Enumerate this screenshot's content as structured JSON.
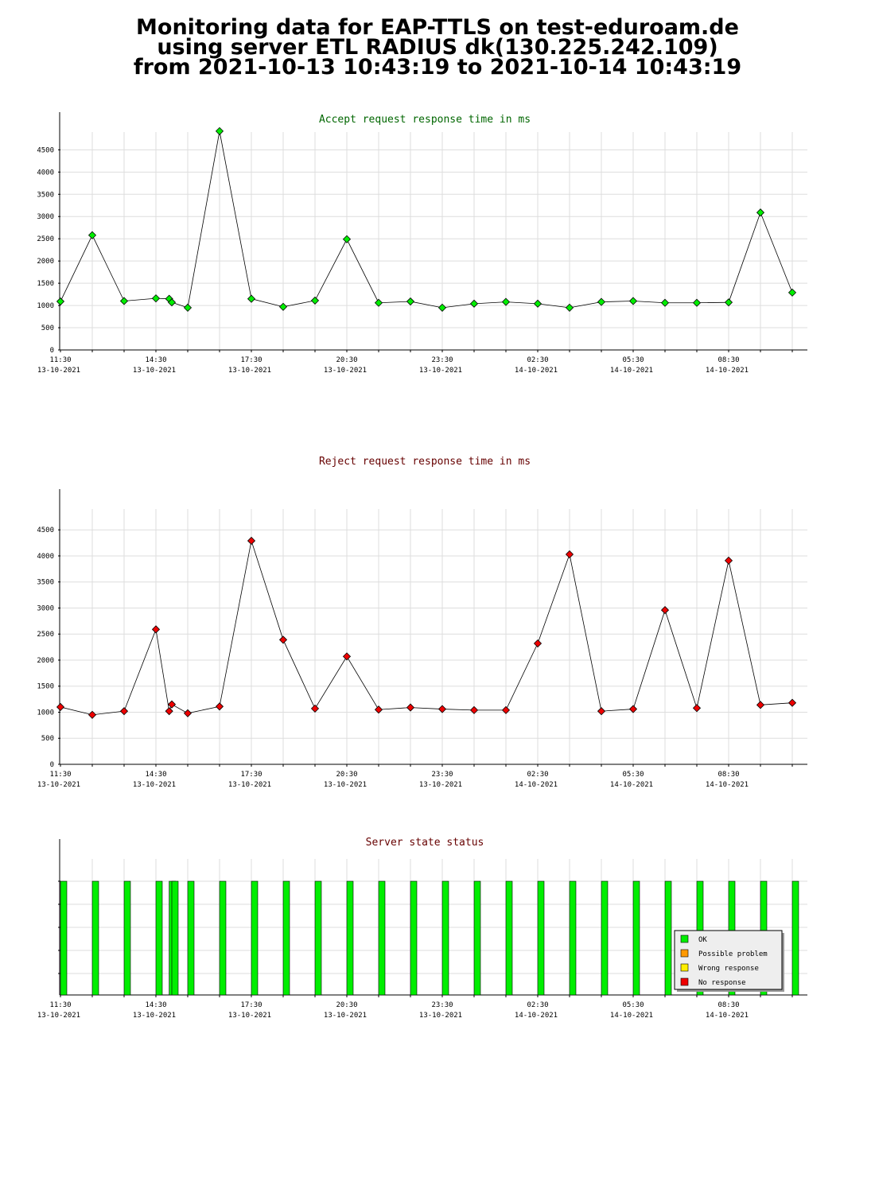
{
  "page": {
    "title_lines": [
      "Monitoring data for EAP-TTLS on test-eduroam.de",
      "using server ETL RADIUS dk(130.225.242.109)",
      "from 2021-10-13 10:43:19 to 2021-10-14 10:43:19"
    ]
  },
  "colors": {
    "accept_title": "#006600",
    "reject_title": "#660000",
    "status_title": "#660000",
    "accept_marker": "#00ee00",
    "reject_marker": "#ee0000",
    "ok": "#00ee00",
    "possible_problem": "#ff9900",
    "wrong_response": "#ffee00",
    "no_response": "#ee0000",
    "grid": "#dddddd"
  },
  "x_ticks": [
    {
      "time": "11:30",
      "date": "13-10-2021"
    },
    {
      "time": "14:30",
      "date": "13-10-2021"
    },
    {
      "time": "17:30",
      "date": "13-10-2021"
    },
    {
      "time": "20:30",
      "date": "13-10-2021"
    },
    {
      "time": "23:30",
      "date": "13-10-2021"
    },
    {
      "time": "02:30",
      "date": "14-10-2021"
    },
    {
      "time": "05:30",
      "date": "14-10-2021"
    },
    {
      "time": "08:30",
      "date": "14-10-2021"
    }
  ],
  "chart_data": [
    {
      "type": "line",
      "title": "Accept request response time in ms",
      "xlabel": "",
      "ylabel": "",
      "ylim": [
        0,
        4900
      ],
      "y_ticks": [
        0,
        500,
        1000,
        1500,
        2000,
        2500,
        3000,
        3500,
        4000,
        4500
      ],
      "grid": true,
      "series": [
        {
          "x": [
            "11:30",
            "12:30",
            "13:30",
            "14:30",
            "14:55",
            "15:00",
            "15:30",
            "16:30",
            "17:30",
            "18:30",
            "19:30",
            "20:30",
            "21:30",
            "22:30",
            "23:30",
            "00:30",
            "01:30",
            "02:30",
            "03:30",
            "04:30",
            "05:30",
            "06:30",
            "07:30",
            "08:30",
            "09:30",
            "10:30"
          ],
          "values": [
            1090,
            2580,
            1100,
            1160,
            1150,
            1070,
            950,
            4920,
            1150,
            970,
            1110,
            2490,
            1060,
            1090,
            950,
            1040,
            1080,
            1040,
            950,
            1080,
            1100,
            1060,
            1060,
            1070,
            3090,
            1290
          ]
        }
      ]
    },
    {
      "type": "line",
      "title": "Reject request response time in ms",
      "xlabel": "",
      "ylabel": "",
      "ylim": [
        0,
        4900
      ],
      "y_ticks": [
        0,
        500,
        1000,
        1500,
        2000,
        2500,
        3000,
        3500,
        4000,
        4500
      ],
      "grid": true,
      "series": [
        {
          "x": [
            "11:30",
            "12:30",
            "13:30",
            "14:30",
            "14:55",
            "15:00",
            "15:30",
            "16:30",
            "17:30",
            "18:30",
            "19:30",
            "20:30",
            "21:30",
            "22:30",
            "23:30",
            "00:30",
            "01:30",
            "02:30",
            "03:30",
            "04:30",
            "05:30",
            "06:30",
            "07:30",
            "08:30",
            "09:30",
            "10:30"
          ],
          "values": [
            1100,
            950,
            1020,
            2590,
            1020,
            1150,
            980,
            1110,
            4290,
            2390,
            1070,
            2070,
            1050,
            1090,
            1060,
            1040,
            1040,
            2320,
            4030,
            1020,
            1060,
            2960,
            1080,
            3910,
            1140,
            1180
          ]
        }
      ]
    },
    {
      "type": "bar",
      "title": "Server state status",
      "xlabel": "",
      "ylabel": "",
      "grid": true,
      "legend_position": "bottom-right",
      "legend": [
        "OK",
        "Possible problem",
        "Wrong response",
        "No response"
      ],
      "categories": [
        "11:30",
        "12:30",
        "13:30",
        "14:30",
        "14:55",
        "15:00",
        "15:30",
        "16:30",
        "17:30",
        "18:30",
        "19:30",
        "20:30",
        "21:30",
        "22:30",
        "23:30",
        "00:30",
        "01:30",
        "02:30",
        "03:30",
        "04:30",
        "05:30",
        "06:30",
        "07:30",
        "08:30",
        "09:30",
        "10:30"
      ],
      "values": [
        "OK",
        "OK",
        "OK",
        "OK",
        "OK",
        "OK",
        "OK",
        "OK",
        "OK",
        "OK",
        "OK",
        "OK",
        "OK",
        "OK",
        "OK",
        "OK",
        "OK",
        "OK",
        "OK",
        "OK",
        "OK",
        "OK",
        "OK",
        "OK",
        "OK",
        "OK"
      ]
    }
  ]
}
